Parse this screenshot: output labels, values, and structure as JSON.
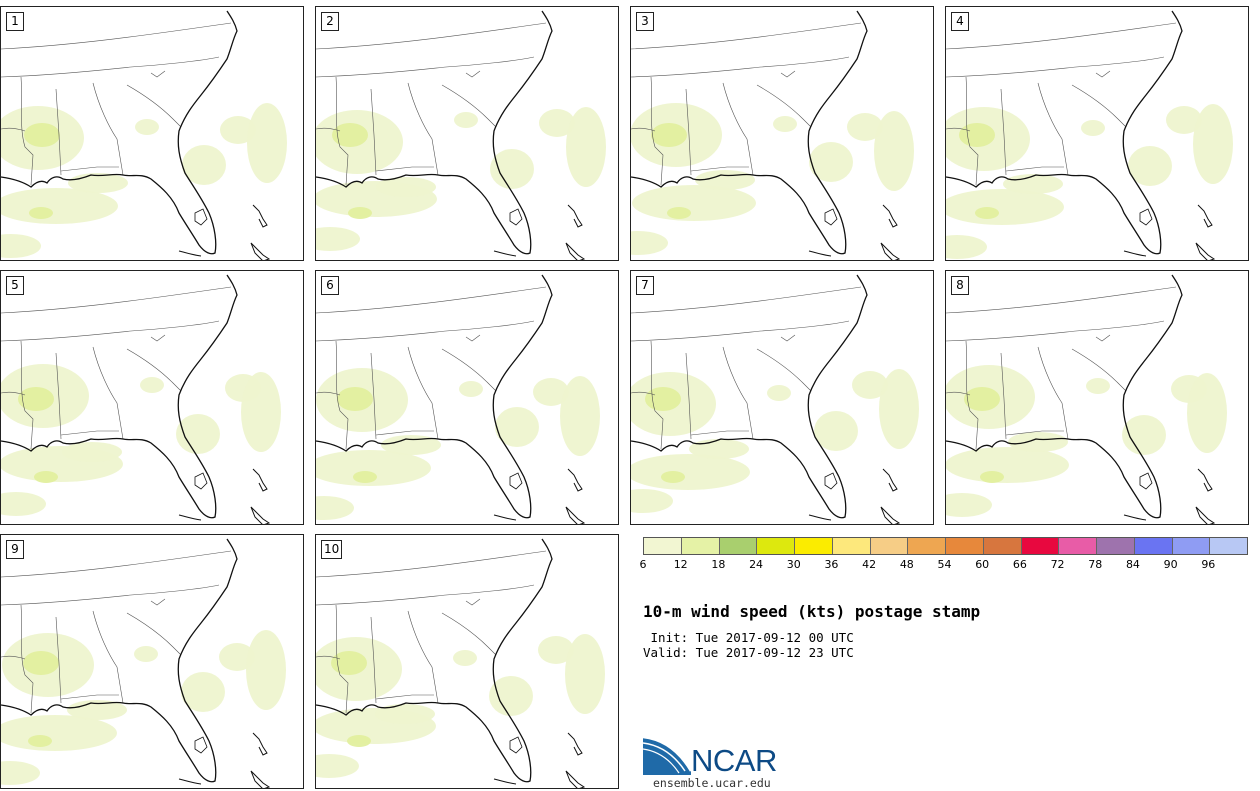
{
  "panels": [
    {
      "label": "1"
    },
    {
      "label": "2"
    },
    {
      "label": "3"
    },
    {
      "label": "4"
    },
    {
      "label": "5"
    },
    {
      "label": "6"
    },
    {
      "label": "7"
    },
    {
      "label": "8"
    },
    {
      "label": "9"
    },
    {
      "label": "10"
    }
  ],
  "colorbar": {
    "colors": [
      "#f2f6d2",
      "#e5f2a6",
      "#a9cf6e",
      "#dde80e",
      "#fbec00",
      "#fde87c",
      "#f6cd86",
      "#eea651",
      "#e7883b",
      "#d7763e",
      "#e8083f",
      "#e85ca7",
      "#9e73ad",
      "#6a74f2",
      "#8f9cf3",
      "#b8c8f4"
    ],
    "ticks": [
      "6",
      "12",
      "18",
      "24",
      "30",
      "36",
      "42",
      "48",
      "54",
      "60",
      "66",
      "72",
      "78",
      "84",
      "90",
      "96"
    ]
  },
  "title": "10-m wind speed (kts) postage stamp",
  "init_line": " Init: Tue 2017-09-12 00 UTC",
  "valid_line": "Valid: Tue 2017-09-12 23 UTC",
  "logo": {
    "text": "NCAR",
    "url": "ensemble.ucar.edu",
    "color": "#0d4a85"
  }
}
